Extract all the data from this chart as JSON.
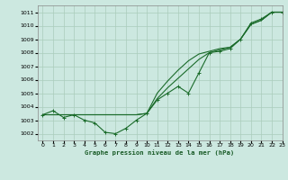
{
  "title": "Graphe pression niveau de la mer (hPa)",
  "background_color": "#cce8e0",
  "grid_color": "#aaccbb",
  "line_color": "#1a6b2a",
  "xlim": [
    -0.5,
    23
  ],
  "ylim": [
    1001.5,
    1011.5
  ],
  "yticks": [
    1002,
    1003,
    1004,
    1005,
    1006,
    1007,
    1008,
    1009,
    1010,
    1011
  ],
  "xticks": [
    0,
    1,
    2,
    3,
    4,
    5,
    6,
    7,
    8,
    9,
    10,
    11,
    12,
    13,
    14,
    15,
    16,
    17,
    18,
    19,
    20,
    21,
    22,
    23
  ],
  "line_jagged": [
    1003.4,
    1003.7,
    1003.2,
    1003.4,
    1003.0,
    1002.8,
    1002.1,
    1002.0,
    1002.4,
    1003.0,
    1003.5,
    1004.5,
    1005.0,
    1005.5,
    1005.0,
    1006.5,
    1008.0,
    1008.1,
    1008.3,
    1009.0,
    1010.2,
    1010.5,
    1011.0,
    1011.0
  ],
  "line_smooth1": [
    1003.4,
    1003.4,
    1003.4,
    1003.4,
    1003.4,
    1003.4,
    1003.4,
    1003.4,
    1003.4,
    1003.4,
    1003.5,
    1004.6,
    1005.4,
    1006.1,
    1006.8,
    1007.5,
    1008.0,
    1008.2,
    1008.4,
    1009.0,
    1010.1,
    1010.4,
    1011.0,
    1011.0
  ],
  "line_smooth2": [
    1003.4,
    1003.4,
    1003.4,
    1003.4,
    1003.4,
    1003.4,
    1003.4,
    1003.4,
    1003.4,
    1003.4,
    1003.5,
    1005.0,
    1005.9,
    1006.7,
    1007.4,
    1007.9,
    1008.1,
    1008.3,
    1008.4,
    1009.0,
    1010.1,
    1010.4,
    1011.0,
    1011.0
  ]
}
